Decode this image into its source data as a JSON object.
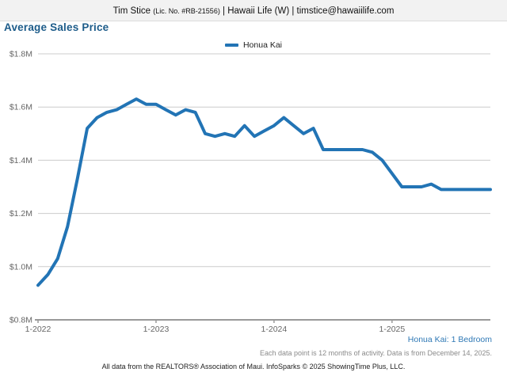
{
  "header": {
    "agent_name": "Tim Stice ",
    "license": "(Lic. No. #RB-21556)",
    "affiliation": " | Hawaii Life (W) | timstice@hawaiilife.com"
  },
  "title": "Average Sales Price",
  "legend": {
    "label": "Honua Kai"
  },
  "colors": {
    "line_blue": "#2274b5",
    "title_blue": "#1d5c8a",
    "link_blue": "#2e78b5",
    "gridline": "#cccccc",
    "axis": "#999999",
    "axis_text": "#666666"
  },
  "chart_data": {
    "type": "line",
    "title": "Average Sales Price",
    "ylim": [
      0.8,
      1.8
    ],
    "grid": "horizontal",
    "legend_position": "top-center",
    "y_ticks": [
      {
        "value": 0.8,
        "label": "$0.8M"
      },
      {
        "value": 1.0,
        "label": "$1.0M"
      },
      {
        "value": 1.2,
        "label": "$1.2M"
      },
      {
        "value": 1.4,
        "label": "$1.4M"
      },
      {
        "value": 1.6,
        "label": "$1.6M"
      },
      {
        "value": 1.8,
        "label": "$1.8M"
      }
    ],
    "x_ticks": [
      {
        "index": 0,
        "label": "1-2022"
      },
      {
        "index": 12,
        "label": "1-2023"
      },
      {
        "index": 24,
        "label": "1-2024"
      },
      {
        "index": 36,
        "label": "1-2025"
      }
    ],
    "x": [
      "1-2022",
      "2-2022",
      "3-2022",
      "4-2022",
      "5-2022",
      "6-2022",
      "7-2022",
      "8-2022",
      "9-2022",
      "10-2022",
      "11-2022",
      "12-2022",
      "1-2023",
      "2-2023",
      "3-2023",
      "4-2023",
      "5-2023",
      "6-2023",
      "7-2023",
      "8-2023",
      "9-2023",
      "10-2023",
      "11-2023",
      "12-2023",
      "1-2024",
      "2-2024",
      "3-2024",
      "4-2024",
      "5-2024",
      "6-2024",
      "7-2024",
      "8-2024",
      "9-2024",
      "10-2024",
      "11-2024",
      "12-2024",
      "1-2025",
      "2-2025",
      "3-2025",
      "4-2025",
      "5-2025",
      "6-2025",
      "7-2025",
      "8-2025",
      "9-2025",
      "10-2025",
      "11-2025"
    ],
    "series": [
      {
        "name": "Honua Kai",
        "subset": "1 Bedroom",
        "color": "#2274b5",
        "unit": "million USD",
        "values": [
          0.93,
          0.97,
          1.03,
          1.15,
          1.33,
          1.52,
          1.56,
          1.58,
          1.59,
          1.61,
          1.63,
          1.61,
          1.61,
          1.59,
          1.57,
          1.59,
          1.58,
          1.5,
          1.49,
          1.5,
          1.49,
          1.53,
          1.49,
          1.51,
          1.53,
          1.56,
          1.53,
          1.5,
          1.52,
          1.44,
          1.44,
          1.44,
          1.44,
          1.44,
          1.43,
          1.4,
          1.35,
          1.3,
          1.3,
          1.3,
          1.31,
          1.29,
          1.29,
          1.29,
          1.29,
          1.29,
          1.29
        ]
      }
    ]
  },
  "footer": {
    "series_note": "Honua Kai: 1 Bedroom",
    "data_note": "Each data point is 12 months of activity. Data is from December 14, 2025.",
    "attribution": "All data from the REALTORS® Association of Maui. InfoSparks © 2025 ShowingTime Plus, LLC."
  }
}
